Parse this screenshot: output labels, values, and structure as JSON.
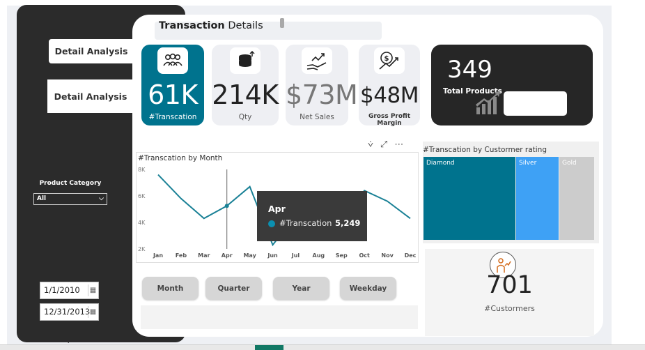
{
  "title": {
    "bold": "Transaction",
    "rest": " Details"
  },
  "nav": {
    "btn1": "Detail Analysis",
    "btn2": "Detail Analysis"
  },
  "filters": {
    "product_category_label": "Product Category",
    "product_category_value": "All",
    "start_date": "1/1/2010",
    "end_date": "12/31/2013"
  },
  "kpis": [
    {
      "value": "61K",
      "label": "#Transcation"
    },
    {
      "value": "214K",
      "label": "Qty"
    },
    {
      "value": "$73M",
      "label": "Net Sales"
    },
    {
      "value": "$48M",
      "label": "Gross Profit Margin"
    }
  ],
  "products": {
    "value": "349",
    "label": "Total Products"
  },
  "visual_tools": {
    "filter": "⩒",
    "focus": "⤢",
    "more": "⋯"
  },
  "line_chart_title": "#Transcation by Month",
  "chart_data": {
    "type": "line",
    "title": "#Transcation by Month",
    "categories": [
      "Jan",
      "Feb",
      "Mar",
      "Apr",
      "May",
      "Jun",
      "Jul",
      "Aug",
      "Sep",
      "Oct",
      "Nov",
      "Dec"
    ],
    "series": [
      {
        "name": "#Transcation",
        "values": [
          7600,
          5800,
          4300,
          5249,
          6700,
          2300,
          4500,
          4800,
          4300,
          6400,
          5600,
          4300
        ]
      }
    ],
    "y_ticks": [
      "8K",
      "6K",
      "4K",
      "2K"
    ],
    "ylim": [
      2000,
      8000
    ],
    "color": "#1a8196"
  },
  "tooltip": {
    "month": "Apr",
    "series": "#Transcation",
    "value": "5,249"
  },
  "period_buttons": [
    "Month",
    "Quarter",
    "Year",
    "Weekday"
  ],
  "rating_chart": {
    "title": "#Transcation by Custormer rating",
    "segments": [
      {
        "label": "Diamond",
        "color": "#00738e"
      },
      {
        "label": "Silver",
        "color": "#3ea1f5"
      },
      {
        "label": "Gold",
        "color": "#cccccc"
      }
    ]
  },
  "customers": {
    "value": "701",
    "label": "#Custormers"
  },
  "colors": {
    "accent": "#00738e",
    "dark": "#262626"
  }
}
